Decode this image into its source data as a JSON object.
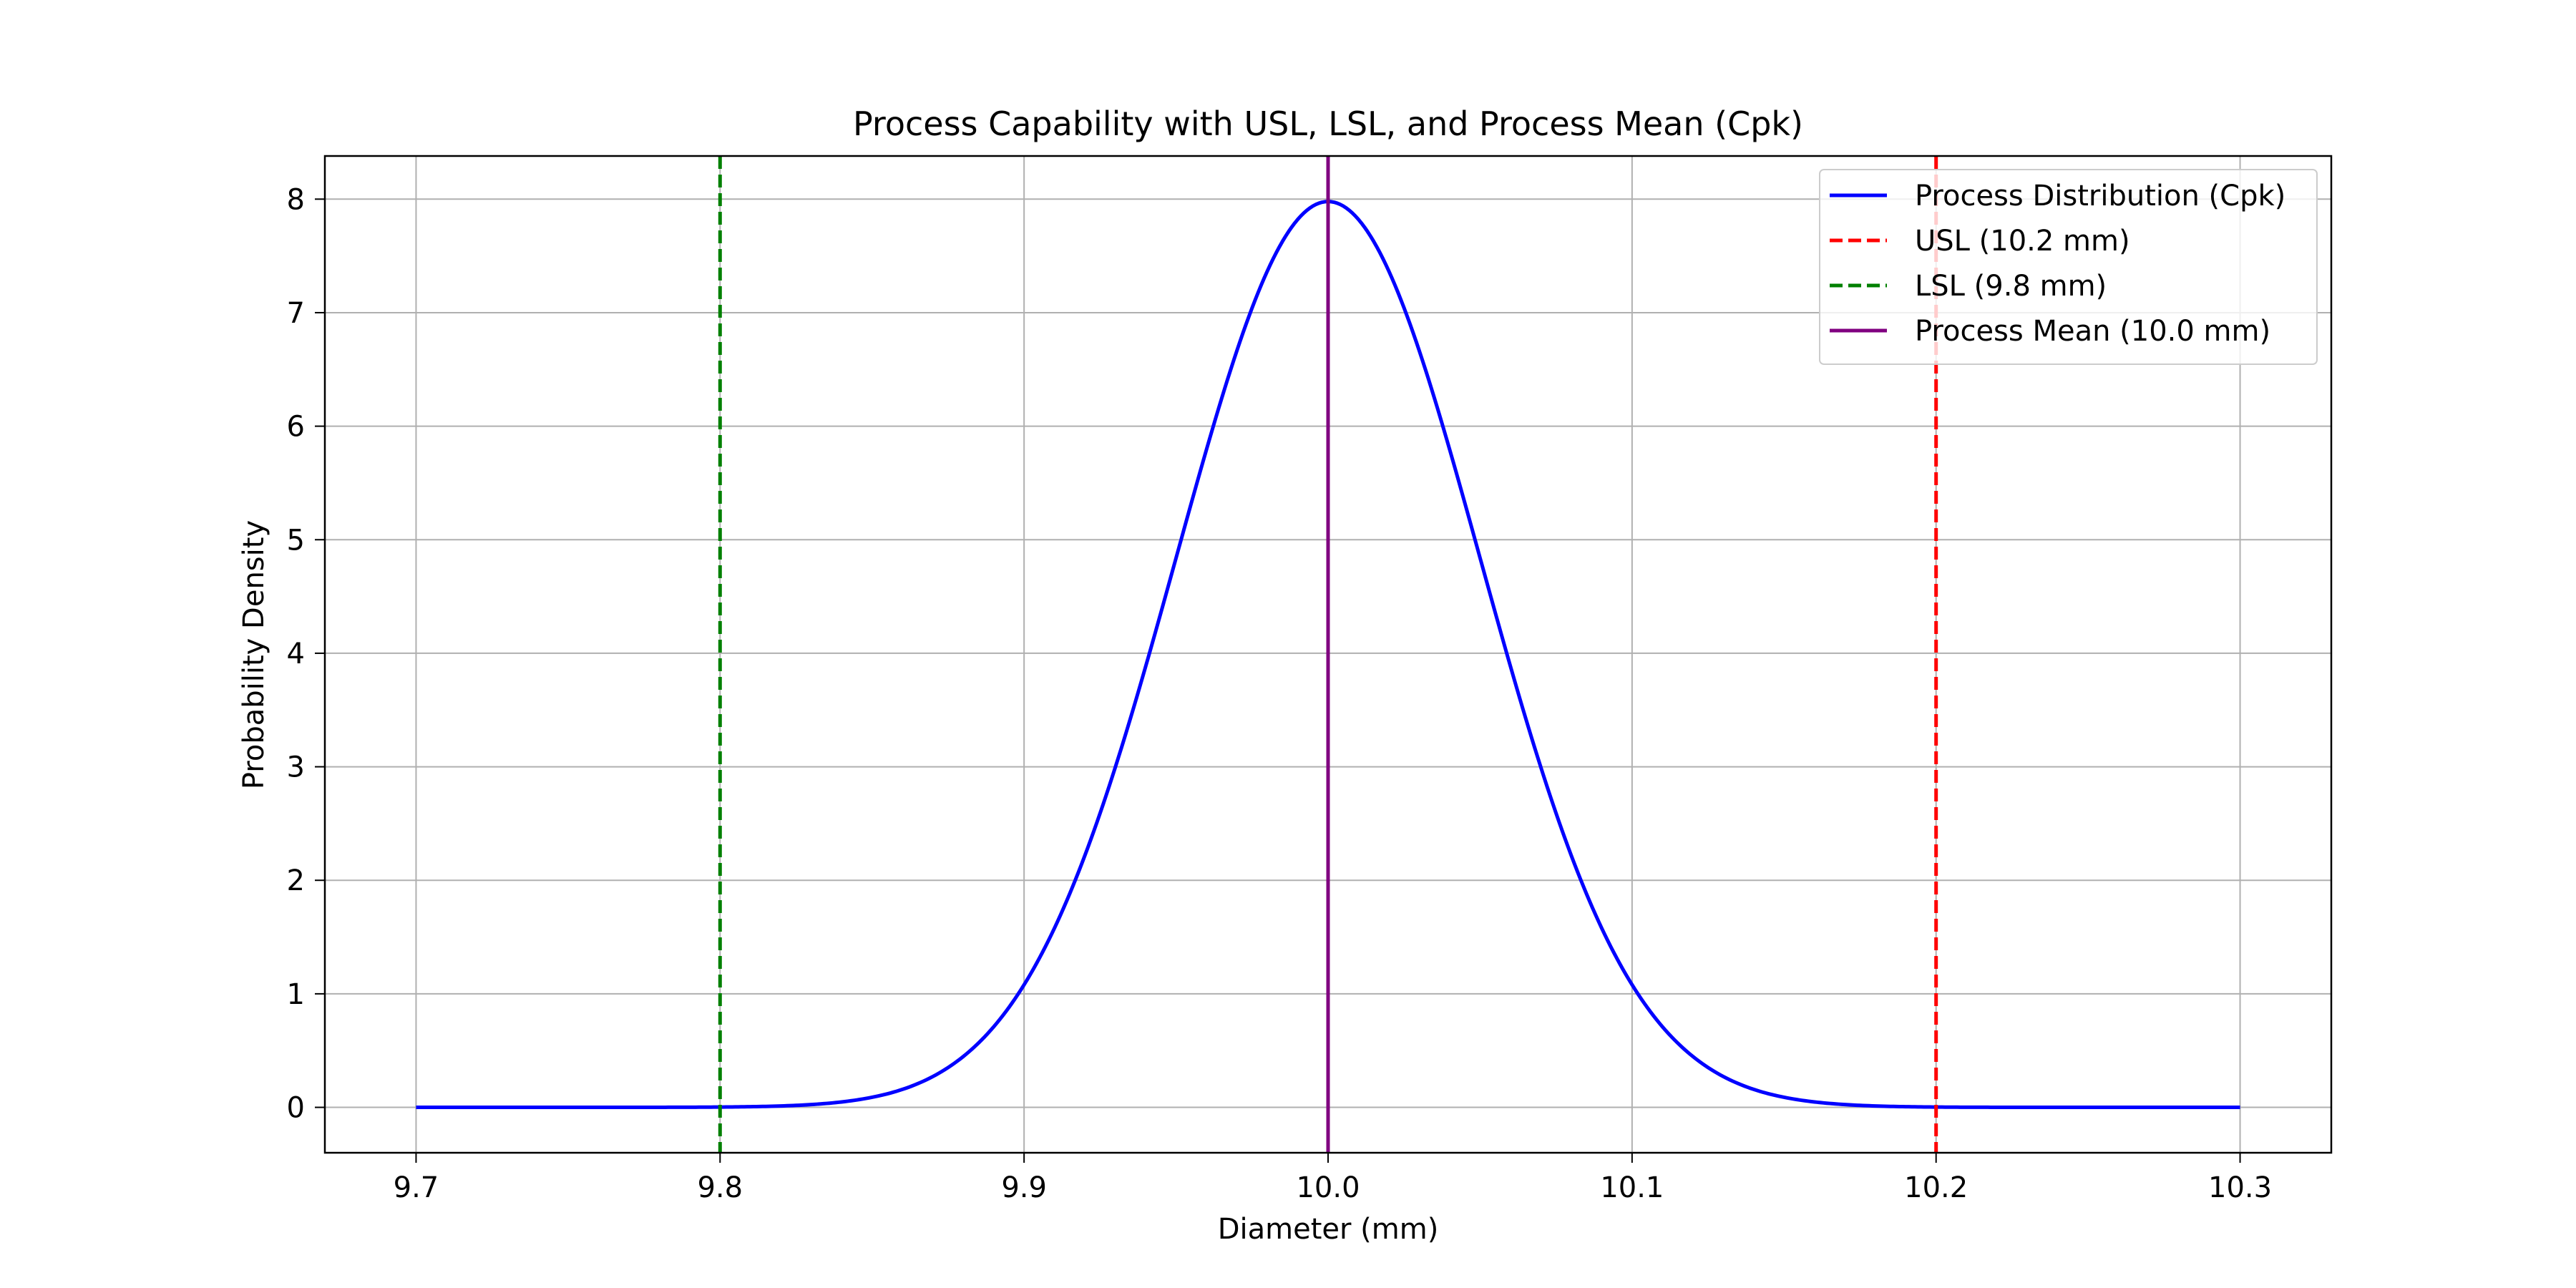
{
  "chart_data": {
    "type": "line",
    "title": "Process Capability with USL, LSL, and Process Mean (Cpk)",
    "xlabel": "Diameter (mm)",
    "ylabel": "Probability Density",
    "xlim": [
      9.67,
      10.33
    ],
    "ylim": [
      -0.4,
      8.38
    ],
    "xticks": [
      "9.7",
      "9.8",
      "9.9",
      "10.0",
      "10.1",
      "10.2",
      "10.3"
    ],
    "yticks": [
      "0",
      "1",
      "2",
      "3",
      "4",
      "5",
      "6",
      "7",
      "8"
    ],
    "grid": true,
    "legend_position": "top-right",
    "distribution": {
      "mean": 10.0,
      "std": 0.05,
      "x_range": [
        9.7,
        10.3
      ]
    },
    "series": [
      {
        "name": "Process Distribution (Cpk)",
        "kind": "curve",
        "color": "#0000ff",
        "style": "solid"
      },
      {
        "name": "USL (10.2 mm)",
        "kind": "vline",
        "x": 10.2,
        "color": "#ff0000",
        "style": "dashed"
      },
      {
        "name": "LSL (9.8 mm)",
        "kind": "vline",
        "x": 9.8,
        "color": "#008000",
        "style": "dashed"
      },
      {
        "name": "Process Mean (10.0 mm)",
        "kind": "vline",
        "x": 10.0,
        "color": "#800080",
        "style": "solid"
      }
    ]
  }
}
